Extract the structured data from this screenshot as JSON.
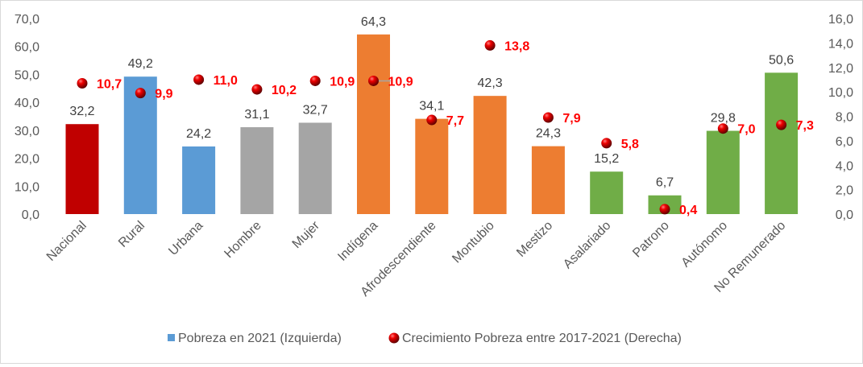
{
  "chart_data": {
    "type": "bar",
    "categories": [
      "Nacional",
      "Rural",
      "Urbana",
      "Hombre",
      "Mujer",
      "Indígena",
      "Afrodescendiente",
      "Montubio",
      "Mestizo",
      "Asalariado",
      "Patrono",
      "Autónomo",
      "No Remunerado"
    ],
    "series": [
      {
        "name": "Pobreza en 2021 (Izquierda)",
        "type": "bar",
        "axis": "left",
        "values": [
          32.2,
          49.2,
          24.2,
          31.1,
          32.7,
          64.3,
          34.1,
          42.3,
          24.3,
          15.2,
          6.7,
          29.8,
          50.6
        ],
        "labels": [
          "32,2",
          "49,2",
          "24,2",
          "31,1",
          "32,7",
          "64,3",
          "34,1",
          "42,3",
          "24,3",
          "15,2",
          "6,7",
          "29,8",
          "50,6"
        ]
      },
      {
        "name": "Crecimiento Pobreza entre 2017-2021 (Derecha)",
        "type": "scatter",
        "axis": "right",
        "values": [
          10.7,
          9.9,
          11.0,
          10.2,
          10.9,
          10.9,
          7.7,
          13.8,
          7.9,
          5.8,
          0.4,
          7.0,
          7.3
        ],
        "labels": [
          "10,7",
          "9,9",
          "11,0",
          "10,2",
          "10,9",
          "10,9",
          "7,7",
          "13,8",
          "7,9",
          "5,8",
          "0,4",
          "7,0",
          "7,3"
        ]
      }
    ],
    "bar_colors": [
      "#C00000",
      "#5B9BD5",
      "#5B9BD5",
      "#A5A5A5",
      "#A5A5A5",
      "#ED7D31",
      "#ED7D31",
      "#ED7D31",
      "#ED7D31",
      "#70AD47",
      "#70AD47",
      "#70AD47",
      "#70AD47"
    ],
    "legend_color": "#5B9BD5",
    "point_color": "#FF0000",
    "ylim_left": [
      0,
      70
    ],
    "ylim_right": [
      0,
      16
    ],
    "yticks_left": [
      "0,0",
      "10,0",
      "20,0",
      "30,0",
      "40,0",
      "50,0",
      "60,0",
      "70,0"
    ],
    "yticks_right": [
      "0,0",
      "2,0",
      "4,0",
      "6,0",
      "8,0",
      "10,0",
      "12,0",
      "14,0",
      "16,0"
    ],
    "legend_position": "bottom",
    "grid": false
  }
}
